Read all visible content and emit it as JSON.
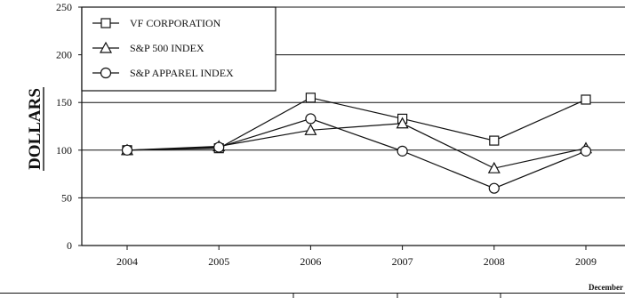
{
  "chart_data": {
    "type": "line",
    "ylabel": "DOLLARS",
    "footer_label": "December",
    "x": [
      "2004",
      "2005",
      "2006",
      "2007",
      "2008",
      "2009"
    ],
    "ylim": [
      0,
      250
    ],
    "yticks": [
      0,
      50,
      100,
      150,
      200,
      250
    ],
    "grid": true,
    "legend_position": "top-left",
    "series": [
      {
        "name": "VF CORPORATION",
        "marker": "square",
        "values": [
          100,
          102,
          155,
          133,
          110,
          153
        ]
      },
      {
        "name": "S&P 500 INDEX",
        "marker": "triangle",
        "values": [
          100,
          104,
          121,
          128,
          81,
          102
        ]
      },
      {
        "name": "S&P APPAREL INDEX",
        "marker": "circle",
        "values": [
          100,
          103,
          133,
          99,
          60,
          99
        ]
      }
    ]
  }
}
